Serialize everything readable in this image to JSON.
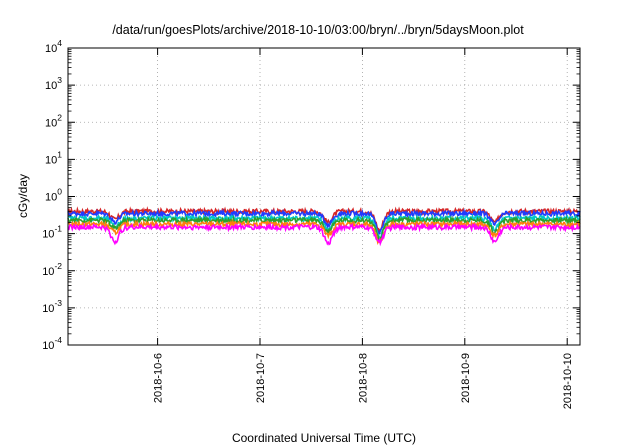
{
  "chart_data": {
    "type": "line",
    "title": "/data/run/goesPlots/archive/2018-10-10/03:00/bryn/../bryn/5daysMoon.plot",
    "xlabel": "Coordinated Universal Time (UTC)",
    "ylabel": "cGy/day",
    "yscale": "log",
    "ylim": [
      0.0001,
      10000
    ],
    "y_ticks": [
      {
        "base": "10",
        "exp": "-4"
      },
      {
        "base": "10",
        "exp": "-3"
      },
      {
        "base": "10",
        "exp": "-2"
      },
      {
        "base": "10",
        "exp": "-1"
      },
      {
        "base": "10",
        "exp": "0"
      },
      {
        "base": "10",
        "exp": "1"
      },
      {
        "base": "10",
        "exp": "2"
      },
      {
        "base": "10",
        "exp": "3"
      },
      {
        "base": "10",
        "exp": "4"
      }
    ],
    "xlim": [
      "2018-10-05T03:00",
      "2018-10-10T03:00"
    ],
    "x_ticks": [
      "2018-10-6",
      "2018-10-7",
      "2018-10-8",
      "2018-10-9",
      "2018-10-10"
    ],
    "grid": true,
    "series": [
      {
        "color": "#d62728",
        "level": 0.4,
        "dips": [
          [
            "2018-10-05T14:00",
            0.6
          ],
          [
            "2018-10-07T16:00",
            0.5
          ],
          [
            "2018-10-08T04:00",
            0.3
          ],
          [
            "2018-10-09T07:00",
            0.5
          ]
        ]
      },
      {
        "color": "#1f3cff",
        "level": 0.35,
        "dips": [
          [
            "2018-10-05T14:00",
            0.6
          ],
          [
            "2018-10-07T16:00",
            0.5
          ],
          [
            "2018-10-08T04:00",
            0.3
          ],
          [
            "2018-10-09T07:00",
            0.5
          ]
        ]
      },
      {
        "color": "#00c8c8",
        "level": 0.26,
        "dips": [
          [
            "2018-10-05T14:00",
            0.6
          ],
          [
            "2018-10-07T16:00",
            0.5
          ],
          [
            "2018-10-08T04:00",
            0.3
          ],
          [
            "2018-10-09T07:00",
            0.5
          ]
        ]
      },
      {
        "color": "#2ca02c",
        "level": 0.23,
        "dips": [
          [
            "2018-10-05T14:00",
            0.6
          ],
          [
            "2018-10-07T16:00",
            0.5
          ],
          [
            "2018-10-08T04:00",
            0.3
          ],
          [
            "2018-10-09T07:00",
            0.5
          ]
        ]
      },
      {
        "color": "#ff7f0e",
        "level": 0.18,
        "dips": [
          [
            "2018-10-05T14:00",
            0.6
          ],
          [
            "2018-10-07T16:00",
            0.5
          ],
          [
            "2018-10-08T04:00",
            0.3
          ],
          [
            "2018-10-09T07:00",
            0.5
          ]
        ]
      },
      {
        "color": "#ff00ff",
        "level": 0.15,
        "dips": [
          [
            "2018-10-05T14:00",
            0.4
          ],
          [
            "2018-10-07T16:00",
            0.35
          ],
          [
            "2018-10-08T04:00",
            0.4
          ],
          [
            "2018-10-09T07:00",
            0.4
          ]
        ]
      }
    ]
  }
}
